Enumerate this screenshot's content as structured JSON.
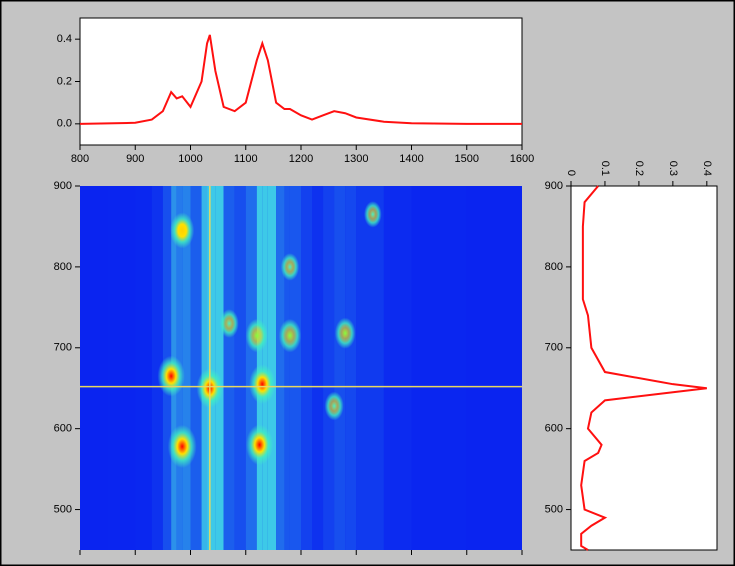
{
  "chart_data": [
    {
      "type": "line",
      "x": [
        800,
        850,
        900,
        930,
        950,
        965,
        975,
        985,
        1000,
        1020,
        1030,
        1035,
        1045,
        1060,
        1080,
        1100,
        1120,
        1130,
        1140,
        1155,
        1170,
        1180,
        1200,
        1220,
        1240,
        1260,
        1280,
        1300,
        1350,
        1400,
        1500,
        1600
      ],
      "series": [
        {
          "color": "#ff1010",
          "values": [
            0,
            0.002,
            0.005,
            0.02,
            0.06,
            0.15,
            0.12,
            0.13,
            0.08,
            0.2,
            0.38,
            0.42,
            0.25,
            0.08,
            0.06,
            0.1,
            0.3,
            0.38,
            0.3,
            0.1,
            0.07,
            0.07,
            0.04,
            0.02,
            0.04,
            0.06,
            0.05,
            0.03,
            0.01,
            0.003,
            0,
            0
          ]
        }
      ],
      "xlim": [
        800,
        1600
      ],
      "xticks": [
        800,
        900,
        1000,
        1100,
        1200,
        1300,
        1400,
        1500,
        1600
      ],
      "ylim": [
        -0.1,
        0.5
      ],
      "yticks": [
        {
          "value": 0,
          "label": "0.0"
        },
        0.2,
        0.4
      ]
    },
    {
      "type": "heatmap",
      "points": [
        {
          "x": 985,
          "y": 578,
          "z": 1
        },
        {
          "x": 965,
          "y": 665,
          "z": 0.9
        },
        {
          "x": 1035,
          "y": 650,
          "z": 0.85
        },
        {
          "x": 1130,
          "y": 655,
          "z": 0.85
        },
        {
          "x": 1125,
          "y": 580,
          "z": 0.9
        },
        {
          "x": 985,
          "y": 845,
          "z": 0.7
        },
        {
          "x": 1120,
          "y": 715,
          "z": 0.6
        },
        {
          "x": 1180,
          "y": 715,
          "z": 0.6
        },
        {
          "x": 1280,
          "y": 718,
          "z": 0.5
        },
        {
          "x": 1070,
          "y": 730,
          "z": 0.4
        },
        {
          "x": 1260,
          "y": 628,
          "z": 0.4
        },
        {
          "x": 1330,
          "y": 865,
          "z": 0.3
        },
        {
          "x": 1180,
          "y": 800,
          "z": 0.35
        }
      ],
      "xlim": [
        800,
        1600
      ],
      "xticks": [
        800,
        900,
        1000,
        1100,
        1200,
        1300,
        1400,
        1500,
        1600
      ],
      "ylim": [
        450,
        900
      ],
      "yticks": [
        500,
        600,
        700,
        800,
        900
      ],
      "cursor": {
        "x": 1035,
        "y": 652
      },
      "cursor_color": "#e8d860"
    },
    {
      "type": "line-vertical",
      "y": [
        450,
        455,
        470,
        480,
        490,
        500,
        530,
        560,
        570,
        580,
        600,
        620,
        635,
        645,
        650,
        655,
        670,
        700,
        740,
        760,
        850,
        880,
        900
      ],
      "values": [
        0.05,
        0.03,
        0.03,
        0.06,
        0.1,
        0.04,
        0.03,
        0.04,
        0.08,
        0.09,
        0.05,
        0.06,
        0.1,
        0.3,
        0.4,
        0.3,
        0.1,
        0.06,
        0.05,
        0.035,
        0.035,
        0.04,
        0.08
      ],
      "color": "#ff1010",
      "xlim": [
        0,
        0.43
      ],
      "xticks": [
        0,
        0.1,
        0.2,
        0.3,
        0.4
      ],
      "ylim": [
        450,
        900
      ],
      "yticks": [
        500,
        600,
        700,
        800,
        900
      ]
    }
  ]
}
